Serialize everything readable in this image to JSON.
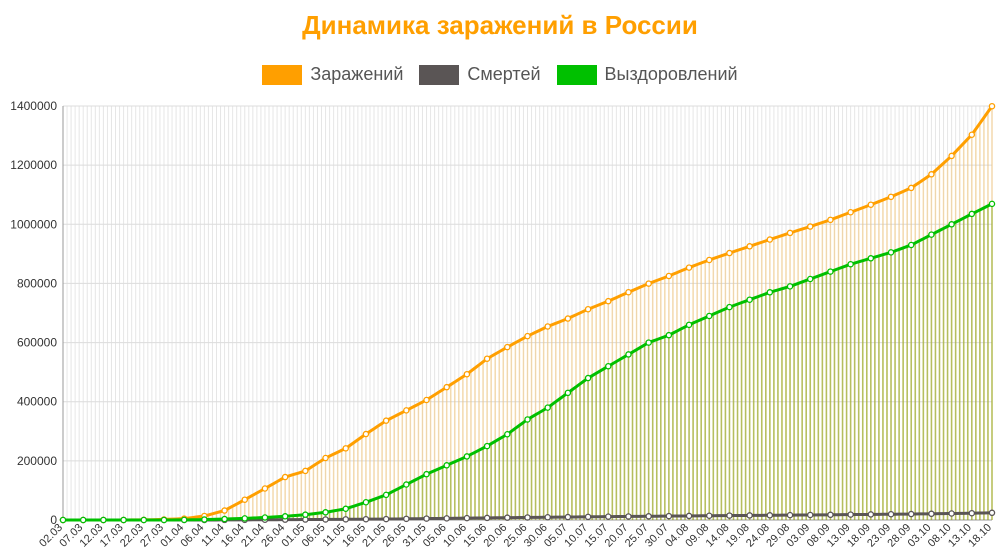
{
  "chart_data": {
    "type": "line",
    "title": "Динамика заражений в России",
    "legend_position": "top",
    "grid": true,
    "ylim": [
      0,
      1400000
    ],
    "yticks": [
      0,
      200000,
      400000,
      600000,
      800000,
      1000000,
      1200000,
      1400000
    ],
    "x_tick_labels": [
      "02.03",
      "07.03",
      "12.03",
      "17.03",
      "22.03",
      "27.03",
      "01.04",
      "06.04",
      "11.04",
      "16.04",
      "21.04",
      "26.04",
      "01.05",
      "06.05",
      "11.05",
      "16.05",
      "21.05",
      "26.05",
      "31.05",
      "05.06",
      "10.06",
      "15.06",
      "20.06",
      "25.06",
      "30.06",
      "05.07",
      "10.07",
      "15.07",
      "20.07",
      "25.07",
      "30.07",
      "04.08",
      "09.08",
      "14.08",
      "19.08",
      "24.08",
      "29.08",
      "03.09",
      "08.09",
      "13.09",
      "18.09",
      "23.09",
      "28.09",
      "03.10",
      "08.10",
      "13.10",
      "18.10"
    ],
    "series": [
      {
        "name": "Заражений",
        "color": "#ff9f00",
        "values": [
          3,
          10,
          20,
          93,
          495,
          1836,
          4731,
          13584,
          32008,
          68622,
          106498,
          145268,
          165929,
          209688,
          242271,
          290678,
          335882,
          370680,
          405843,
          449256,
          493023,
          545458,
          584680,
          621777,
          654405,
          681251,
          712863,
          739947,
          770311,
          799499,
          825251,
          853638,
          879283,
          902701,
          925558,
          948447,
          970865,
          992402,
          1015105,
          1040689,
          1066213,
          1092885,
          1123045,
          1169136,
          1231277,
          1302807,
          1399334
        ]
      },
      {
        "name": "Смертей",
        "color": "#5a5555",
        "values": [
          0,
          0,
          0,
          0,
          1,
          8,
          43,
          130,
          275,
          530,
          800,
          1200,
          1550,
          1900,
          2300,
          2700,
          3100,
          3900,
          4700,
          5500,
          6300,
          7100,
          7900,
          8600,
          9300,
          10000,
          10700,
          11400,
          12000,
          12600,
          13200,
          13800,
          14400,
          15000,
          15500,
          16000,
          16500,
          17000,
          17600,
          18300,
          18900,
          19500,
          20200,
          21000,
          22000,
          23000,
          24400
        ]
      },
      {
        "name": "Выздоровлений",
        "color": "#00c000",
        "values": [
          0,
          0,
          0,
          0,
          0,
          50,
          400,
          1500,
          3200,
          5500,
          8500,
          12500,
          18000,
          26000,
          38000,
          60000,
          85000,
          120000,
          155000,
          185000,
          215000,
          250000,
          290000,
          340000,
          380000,
          430000,
          480000,
          520000,
          560000,
          600000,
          625000,
          660000,
          690000,
          720000,
          745000,
          770000,
          790000,
          815000,
          840000,
          865000,
          885000,
          905000,
          930000,
          965000,
          1000000,
          1035000,
          1069000
        ]
      }
    ]
  }
}
